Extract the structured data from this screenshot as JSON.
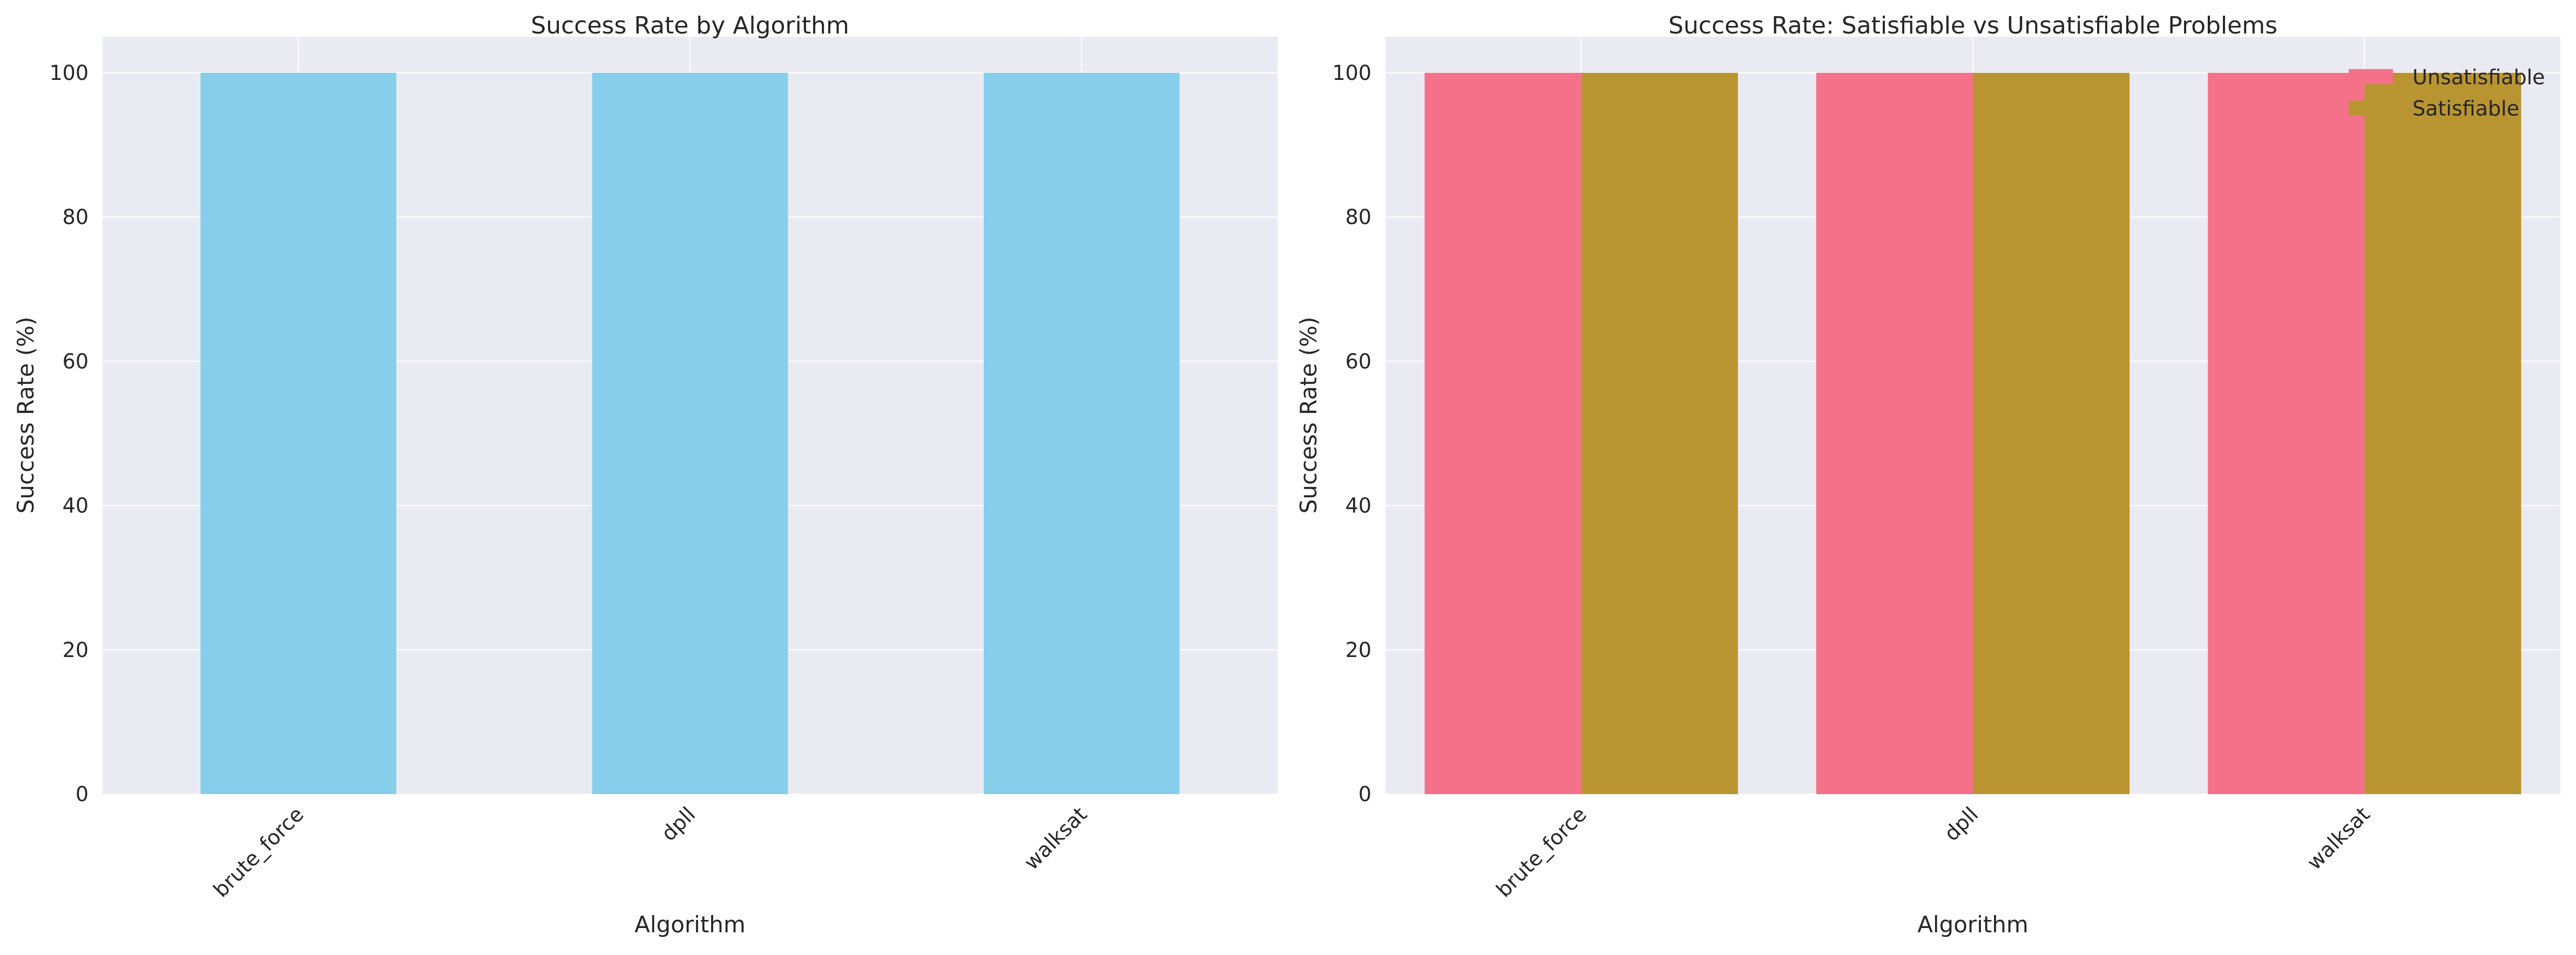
{
  "chart_data": [
    {
      "type": "bar",
      "title": "Success Rate by Algorithm",
      "xlabel": "Algorithm",
      "ylabel": "Success Rate (%)",
      "categories": [
        "brute_force",
        "dpll",
        "walksat"
      ],
      "values": [
        100,
        100,
        100
      ],
      "ylim": [
        0,
        105
      ],
      "yticks": [
        "0",
        "20",
        "40",
        "60",
        "80",
        "100"
      ],
      "grid": true,
      "legend": null,
      "colors": {
        "bar": "#87ceeb",
        "background": "#eaeaf2",
        "grid": "#ffffff"
      }
    },
    {
      "type": "bar",
      "title": "Success Rate: Satisfiable vs Unsatisfiable Problems",
      "xlabel": "Algorithm",
      "ylabel": "Success Rate (%)",
      "categories": [
        "brute_force",
        "dpll",
        "walksat"
      ],
      "series": [
        {
          "name": "Unsatisfiable",
          "values": [
            100,
            100,
            100
          ],
          "color": "#f5718a"
        },
        {
          "name": "Satisfiable",
          "values": [
            100,
            100,
            100
          ],
          "color": "#b99532"
        }
      ],
      "ylim": [
        0,
        105
      ],
      "yticks": [
        "0",
        "20",
        "40",
        "60",
        "80",
        "100"
      ],
      "grid": true,
      "legend": "top-right",
      "colors": {
        "background": "#eaeaf2",
        "grid": "#ffffff"
      }
    }
  ]
}
